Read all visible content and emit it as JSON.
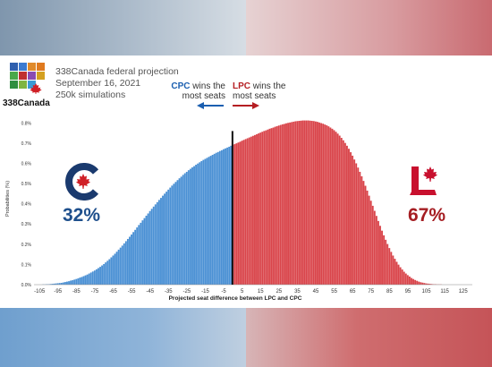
{
  "header": {
    "logo_text": "338Canada",
    "title_line1": "338Canada federal projection",
    "title_line2": "September 16, 2021",
    "title_line3": "250k simulations"
  },
  "annotations": {
    "cpc_party": "CPC",
    "cpc_text": " wins the",
    "cpc_text2": "most seats",
    "lpc_party": "LPC",
    "lpc_text": " wins the",
    "lpc_text2": "most seats"
  },
  "results": {
    "cpc_pct": "32%",
    "lpc_pct": "67%"
  },
  "colors": {
    "cpc": "#4a90d4",
    "lpc": "#d9444a",
    "cpc_dark": "#1e4f8c",
    "lpc_dark": "#a51d22",
    "logo_squares": [
      "#2e5fae",
      "#3c7bd1",
      "#e08a2a",
      "#e07a1f",
      "#4aa84a",
      "#c03030",
      "#8a4bb2",
      "#d4a020",
      "#2f8f3f",
      "#7fb542",
      "#3b9bd5",
      "#e05a2a"
    ]
  },
  "chart_data": {
    "type": "bar",
    "xlabel": "Projected seat difference between LPC and CPC",
    "ylabel": "Probabilities (%)",
    "x_ticks": [
      -105,
      -95,
      -85,
      -75,
      -65,
      -55,
      -45,
      -35,
      -25,
      -15,
      -5,
      5,
      15,
      25,
      35,
      45,
      55,
      65,
      75,
      85,
      95,
      105,
      115,
      125
    ],
    "y_ticks": [
      "0.0%",
      "0.1%",
      "0.2%",
      "0.3%",
      "0.4%",
      "0.5%",
      "0.6%",
      "0.7%",
      "0.8%"
    ],
    "xlim": [
      -108,
      130
    ],
    "ylim": [
      0,
      0.85
    ],
    "x_start": -105,
    "x_step": 1,
    "threshold": 0,
    "values": [
      0.0,
      0.0,
      0.001,
      0.001,
      0.002,
      0.002,
      0.003,
      0.004,
      0.005,
      0.006,
      0.007,
      0.008,
      0.009,
      0.011,
      0.013,
      0.015,
      0.017,
      0.02,
      0.022,
      0.025,
      0.028,
      0.031,
      0.035,
      0.038,
      0.042,
      0.046,
      0.05,
      0.055,
      0.06,
      0.065,
      0.07,
      0.076,
      0.082,
      0.088,
      0.095,
      0.102,
      0.11,
      0.118,
      0.126,
      0.135,
      0.144,
      0.153,
      0.163,
      0.173,
      0.183,
      0.193,
      0.204,
      0.215,
      0.226,
      0.237,
      0.248,
      0.26,
      0.271,
      0.283,
      0.295,
      0.306,
      0.318,
      0.329,
      0.341,
      0.352,
      0.364,
      0.375,
      0.386,
      0.397,
      0.408,
      0.419,
      0.429,
      0.44,
      0.45,
      0.46,
      0.47,
      0.48,
      0.49,
      0.499,
      0.508,
      0.517,
      0.526,
      0.534,
      0.543,
      0.551,
      0.558,
      0.566,
      0.573,
      0.58,
      0.586,
      0.593,
      0.599,
      0.605,
      0.611,
      0.617,
      0.622,
      0.627,
      0.632,
      0.637,
      0.642,
      0.647,
      0.652,
      0.656,
      0.661,
      0.665,
      0.67,
      0.674,
      0.678,
      0.682,
      0.687,
      0.691,
      0.695,
      0.699,
      0.703,
      0.707,
      0.712,
      0.716,
      0.72,
      0.724,
      0.728,
      0.732,
      0.736,
      0.74,
      0.744,
      0.748,
      0.752,
      0.756,
      0.76,
      0.763,
      0.767,
      0.771,
      0.774,
      0.777,
      0.781,
      0.784,
      0.787,
      0.79,
      0.793,
      0.795,
      0.798,
      0.8,
      0.802,
      0.804,
      0.806,
      0.808,
      0.809,
      0.81,
      0.811,
      0.812,
      0.812,
      0.812,
      0.812,
      0.811,
      0.81,
      0.809,
      0.807,
      0.805,
      0.802,
      0.799,
      0.796,
      0.792,
      0.788,
      0.783,
      0.777,
      0.771,
      0.764,
      0.756,
      0.747,
      0.737,
      0.726,
      0.714,
      0.701,
      0.687,
      0.672,
      0.655,
      0.638,
      0.619,
      0.6,
      0.579,
      0.558,
      0.536,
      0.513,
      0.489,
      0.465,
      0.44,
      0.415,
      0.39,
      0.365,
      0.34,
      0.315,
      0.291,
      0.267,
      0.244,
      0.222,
      0.201,
      0.181,
      0.162,
      0.144,
      0.128,
      0.113,
      0.099,
      0.086,
      0.075,
      0.064,
      0.055,
      0.047,
      0.04,
      0.033,
      0.028,
      0.023,
      0.019,
      0.015,
      0.012,
      0.01,
      0.008,
      0.006,
      0.005,
      0.004,
      0.003,
      0.002,
      0.002,
      0.001,
      0.001,
      0.001,
      0.0,
      0.0,
      0.0,
      0.0,
      0.0,
      0.0,
      0.0,
      0.0,
      0.0,
      0.0,
      0.0,
      0.0,
      0.0,
      0.0,
      0.0,
      0.0,
      0.0,
      0.0,
      0.0,
      0.0
    ]
  }
}
